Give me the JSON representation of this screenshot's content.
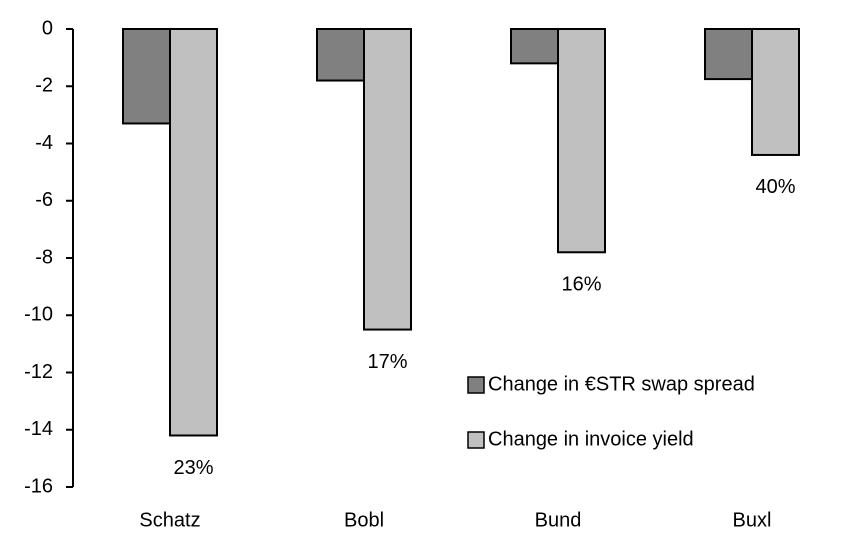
{
  "chart_data": {
    "type": "bar",
    "categories": [
      "Schatz",
      "Bobl",
      "Bund",
      "Buxl"
    ],
    "series": [
      {
        "name": "Change in €STR swap spread",
        "color": "#808080",
        "values": [
          -3.3,
          -1.8,
          -1.2,
          -1.75
        ]
      },
      {
        "name": "Change in invoice yield",
        "color": "#c0c0c0",
        "values": [
          -14.2,
          -10.5,
          -7.8,
          -4.4
        ]
      }
    ],
    "annotations": [
      "23%",
      "17%",
      "16%",
      "40%"
    ],
    "ylim": [
      -16,
      0
    ],
    "yticks": [
      0,
      -2,
      -4,
      -6,
      -8,
      -10,
      -12,
      -14,
      -16
    ],
    "legend": "lower right"
  }
}
